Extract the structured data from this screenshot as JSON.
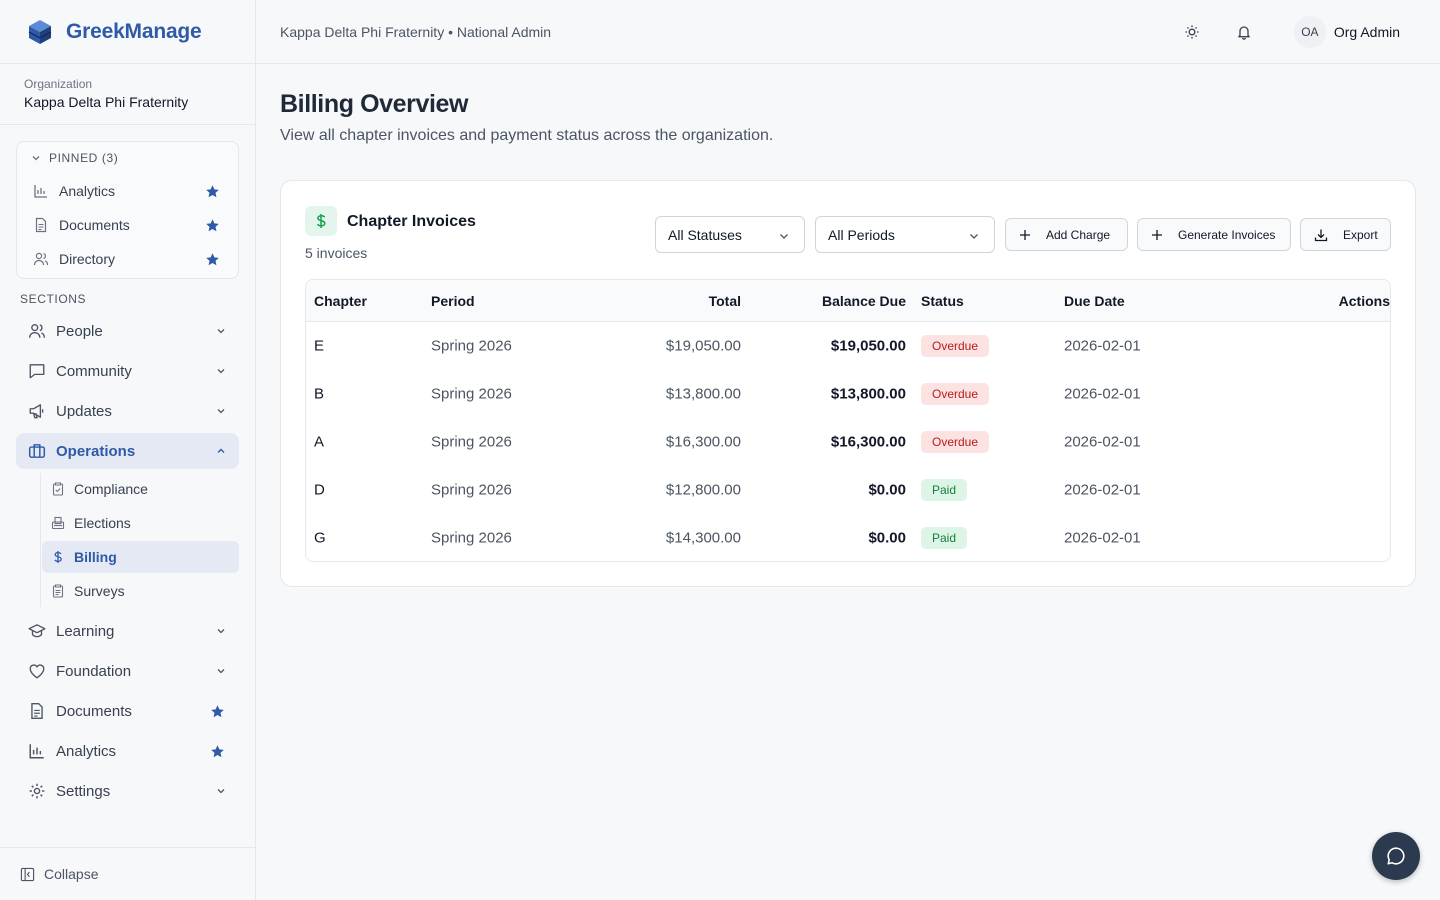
{
  "brand": {
    "name": "GreekManage"
  },
  "org": {
    "label": "Organization",
    "name": "Kappa Delta Phi Fraternity"
  },
  "pinned": {
    "header": "PINNED (3)",
    "items": [
      {
        "label": "Analytics",
        "icon": "bar-chart-icon"
      },
      {
        "label": "Documents",
        "icon": "document-icon"
      },
      {
        "label": "Directory",
        "icon": "users-icon"
      }
    ]
  },
  "sections_label": "SECTIONS",
  "nav": {
    "people": "People",
    "community": "Community",
    "updates": "Updates",
    "operations": "Operations",
    "operations_sub": [
      "Compliance",
      "Elections",
      "Billing",
      "Surveys"
    ],
    "learning": "Learning",
    "foundation": "Foundation",
    "documents": "Documents",
    "analytics": "Analytics",
    "settings": "Settings"
  },
  "collapse_label": "Collapse",
  "header": {
    "breadcrumb": "Kappa Delta Phi Fraternity • National Admin",
    "avatar_initials": "OA",
    "user_name": "Org Admin"
  },
  "page": {
    "title": "Billing Overview",
    "subtitle": "View all chapter invoices and payment status across the organization."
  },
  "card": {
    "title": "Chapter Invoices",
    "count": "5 invoices",
    "status_filter": "All Statuses",
    "period_filter": "All Periods",
    "add_charge": "Add Charge",
    "generate_invoices": "Generate Invoices",
    "export": "Export"
  },
  "table": {
    "columns": [
      "Chapter",
      "Period",
      "Total",
      "Balance Due",
      "Status",
      "Due Date",
      "Actions"
    ],
    "rows": [
      {
        "chapter": "E",
        "period": "Spring 2026",
        "total": "$19,050.00",
        "balance": "$19,050.00",
        "status": "Overdue",
        "due": "2026-02-01"
      },
      {
        "chapter": "B",
        "period": "Spring 2026",
        "total": "$13,800.00",
        "balance": "$13,800.00",
        "status": "Overdue",
        "due": "2026-02-01"
      },
      {
        "chapter": "A",
        "period": "Spring 2026",
        "total": "$16,300.00",
        "balance": "$16,300.00",
        "status": "Overdue",
        "due": "2026-02-01"
      },
      {
        "chapter": "D",
        "period": "Spring 2026",
        "total": "$12,800.00",
        "balance": "$0.00",
        "status": "Paid",
        "due": "2026-02-01"
      },
      {
        "chapter": "G",
        "period": "Spring 2026",
        "total": "$14,300.00",
        "balance": "$0.00",
        "status": "Paid",
        "due": "2026-02-01"
      }
    ]
  },
  "colors": {
    "accent": "#2f5aa8",
    "overdue": "#b91c1c",
    "paid": "#15803d",
    "fab": "#2b3a4f"
  }
}
